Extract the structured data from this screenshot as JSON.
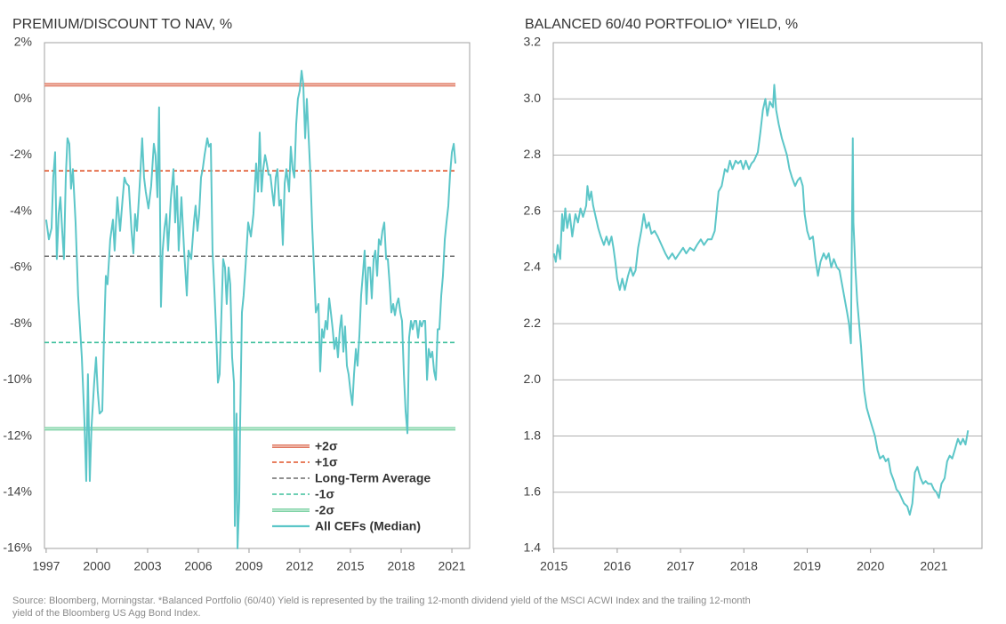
{
  "chart_data": [
    {
      "type": "line",
      "title": "PREMIUM/DISCOUNT TO NAV, %",
      "xlim": [
        1996.9,
        2022.05
      ],
      "xticks": [
        1997,
        2000,
        2003,
        2006,
        2009,
        2012,
        2015,
        2018,
        2021
      ],
      "ylim": [
        -16,
        2
      ],
      "yticks": [
        {
          "value": 2,
          "label": "2%"
        },
        {
          "value": 0,
          "label": "0%"
        },
        {
          "value": -2,
          "label": "-2%"
        },
        {
          "value": -4,
          "label": "-4%"
        },
        {
          "value": -6,
          "label": "-6%"
        },
        {
          "value": -8,
          "label": "-8%"
        },
        {
          "value": -10,
          "label": "-10%"
        },
        {
          "value": -12,
          "label": "-12%"
        },
        {
          "value": -14,
          "label": "-14%"
        },
        {
          "value": -16,
          "label": "-16%"
        }
      ],
      "grid": false,
      "legend": "bottom-right",
      "reference_lines": [
        {
          "name": "+2σ",
          "value": 0.5,
          "color": "#e07a63",
          "style": "double"
        },
        {
          "name": "+1σ",
          "value": -2.56,
          "color": "#e0552a",
          "style": "dashed"
        },
        {
          "name": "Long-Term Average",
          "value": -5.6,
          "color": "#6b6b6b",
          "style": "dashed"
        },
        {
          "name": "-1σ",
          "value": -8.67,
          "color": "#3dbf9c",
          "style": "dashed"
        },
        {
          "name": "-2σ",
          "value": -11.74,
          "color": "#7fd3a6",
          "style": "double"
        }
      ],
      "x": [
        1997.0,
        1997.16,
        1997.32,
        1997.42,
        1997.53,
        1997.63,
        1997.74,
        1997.84,
        1997.95,
        1998.05,
        1998.16,
        1998.26,
        1998.37,
        1998.47,
        1998.58,
        1998.74,
        1998.89,
        1999.11,
        1999.26,
        1999.37,
        1999.47,
        1999.58,
        1999.68,
        1999.84,
        1999.95,
        2000.05,
        2000.16,
        2000.32,
        2000.42,
        2000.53,
        2000.63,
        2000.79,
        2000.95,
        2001.05,
        2001.21,
        2001.37,
        2001.53,
        2001.63,
        2001.74,
        2001.89,
        2002.05,
        2002.16,
        2002.26,
        2002.37,
        2002.53,
        2002.68,
        2002.79,
        2002.89,
        2003.05,
        2003.21,
        2003.37,
        2003.47,
        2003.58,
        2003.68,
        2003.79,
        2003.89,
        2004.0,
        2004.11,
        2004.21,
        2004.37,
        2004.53,
        2004.63,
        2004.74,
        2004.84,
        2005.0,
        2005.16,
        2005.32,
        2005.42,
        2005.58,
        2005.74,
        2005.84,
        2005.95,
        2006.05,
        2006.16,
        2006.26,
        2006.37,
        2006.53,
        2006.63,
        2006.74,
        2006.84,
        2006.95,
        2007.05,
        2007.16,
        2007.26,
        2007.37,
        2007.47,
        2007.58,
        2007.68,
        2007.79,
        2007.89,
        2008.0,
        2008.11,
        2008.16,
        2008.26,
        2008.32,
        2008.42,
        2008.47,
        2008.58,
        2008.68,
        2008.79,
        2008.95,
        2009.11,
        2009.26,
        2009.42,
        2009.53,
        2009.63,
        2009.74,
        2009.84,
        2009.95,
        2010.05,
        2010.16,
        2010.26,
        2010.37,
        2010.47,
        2010.58,
        2010.68,
        2010.79,
        2010.89,
        2011.0,
        2011.11,
        2011.21,
        2011.37,
        2011.47,
        2011.58,
        2011.68,
        2011.79,
        2011.89,
        2012.0,
        2012.11,
        2012.21,
        2012.32,
        2012.42,
        2012.53,
        2012.63,
        2012.74,
        2012.84,
        2012.95,
        2013.11,
        2013.21,
        2013.32,
        2013.42,
        2013.53,
        2013.63,
        2013.74,
        2013.84,
        2013.95,
        2014.05,
        2014.16,
        2014.26,
        2014.37,
        2014.47,
        2014.58,
        2014.68,
        2014.79,
        2014.89,
        2015.0,
        2015.11,
        2015.21,
        2015.32,
        2015.42,
        2015.53,
        2015.63,
        2015.74,
        2015.84,
        2015.95,
        2016.05,
        2016.16,
        2016.26,
        2016.37,
        2016.47,
        2016.58,
        2016.68,
        2016.79,
        2016.89,
        2017.0,
        2017.11,
        2017.21,
        2017.32,
        2017.42,
        2017.53,
        2017.63,
        2017.74,
        2017.84,
        2017.95,
        2018.05,
        2018.16,
        2018.26,
        2018.37,
        2018.47,
        2018.58,
        2018.68,
        2018.79,
        2018.89,
        2019.0,
        2019.11,
        2019.21,
        2019.32,
        2019.42,
        2019.53,
        2019.63,
        2019.74,
        2019.84,
        2019.95,
        2020.05,
        2020.16,
        2020.26,
        2020.37,
        2020.47,
        2020.58,
        2020.68,
        2020.79,
        2020.89,
        2021.0,
        2021.11,
        2021.21
      ],
      "series": [
        {
          "name": "All CEFs (Median)",
          "color": "#5cc6c8",
          "values": [
            -4.3,
            -5.0,
            -4.6,
            -2.8,
            -1.9,
            -5.7,
            -4.1,
            -3.5,
            -4.7,
            -5.7,
            -2.8,
            -1.4,
            -1.6,
            -3.2,
            -2.5,
            -4.4,
            -7.0,
            -9.2,
            -11.4,
            -13.6,
            -9.8,
            -13.6,
            -11.7,
            -10.1,
            -9.2,
            -10.4,
            -11.2,
            -11.1,
            -8.5,
            -6.3,
            -6.6,
            -5.0,
            -4.3,
            -5.4,
            -3.5,
            -4.7,
            -3.5,
            -2.8,
            -3.0,
            -3.1,
            -4.7,
            -5.5,
            -4.1,
            -4.7,
            -3.1,
            -1.4,
            -2.8,
            -3.3,
            -3.9,
            -3.1,
            -1.6,
            -2.0,
            -3.5,
            -0.3,
            -7.4,
            -5.4,
            -4.6,
            -4.1,
            -5.4,
            -3.6,
            -2.5,
            -4.4,
            -3.1,
            -5.4,
            -3.5,
            -5.4,
            -7.0,
            -5.4,
            -5.7,
            -4.4,
            -3.8,
            -4.7,
            -4.1,
            -2.8,
            -2.5,
            -2.0,
            -1.4,
            -1.7,
            -1.6,
            -5.4,
            -6.8,
            -8.2,
            -10.1,
            -9.8,
            -7.6,
            -5.7,
            -6.0,
            -7.3,
            -6.0,
            -6.6,
            -9.2,
            -10.1,
            -15.2,
            -11.2,
            -16.0,
            -14.3,
            -11.7,
            -7.6,
            -7.0,
            -6.0,
            -4.4,
            -4.9,
            -4.1,
            -2.3,
            -3.3,
            -1.2,
            -3.3,
            -2.5,
            -2.0,
            -2.3,
            -2.7,
            -2.7,
            -3.3,
            -3.8,
            -2.8,
            -2.5,
            -3.8,
            -3.6,
            -5.2,
            -3.0,
            -2.5,
            -3.3,
            -1.7,
            -2.5,
            -2.8,
            -0.9,
            0.0,
            0.3,
            1.0,
            0.5,
            -1.4,
            0.0,
            -1.4,
            -2.7,
            -4.6,
            -6.0,
            -7.6,
            -7.3,
            -9.7,
            -8.2,
            -8.5,
            -7.9,
            -8.2,
            -7.1,
            -7.6,
            -8.2,
            -8.9,
            -8.5,
            -9.2,
            -8.2,
            -7.7,
            -9.0,
            -8.1,
            -9.5,
            -9.8,
            -10.4,
            -10.9,
            -9.8,
            -8.9,
            -9.5,
            -8.4,
            -7.0,
            -6.2,
            -5.4,
            -7.3,
            -6.0,
            -6.0,
            -7.1,
            -5.7,
            -5.4,
            -6.3,
            -5.0,
            -5.2,
            -4.7,
            -4.4,
            -5.7,
            -5.7,
            -6.6,
            -7.6,
            -7.3,
            -7.7,
            -7.3,
            -7.1,
            -7.6,
            -7.9,
            -9.8,
            -11.1,
            -11.9,
            -8.5,
            -7.9,
            -8.2,
            -7.9,
            -7.9,
            -8.5,
            -7.9,
            -8.1,
            -7.9,
            -7.9,
            -10.0,
            -8.9,
            -9.2,
            -9.0,
            -9.7,
            -10.0,
            -8.2,
            -8.2,
            -7.0,
            -6.3,
            -5.0,
            -4.4,
            -3.8,
            -2.7,
            -1.9,
            -1.6,
            -2.3
          ]
        }
      ]
    },
    {
      "type": "line",
      "title": "BALANCED 60/40 PORTFOLIO* YIELD, %",
      "xlim": [
        2014.99,
        2021.76
      ],
      "xticks": [
        2015,
        2016,
        2017,
        2018,
        2019,
        2020,
        2021
      ],
      "ylim": [
        1.4,
        3.2
      ],
      "yticks": [
        3.2,
        {
          "value": 3,
          "label": "3.0"
        },
        2.8,
        2.6,
        2.4,
        2.2,
        {
          "value": 2,
          "label": "2.0"
        },
        1.8,
        1.6,
        1.4
      ],
      "grid": true,
      "x": [
        2015.0,
        2015.03,
        2015.06,
        2015.1,
        2015.13,
        2015.15,
        2015.18,
        2015.21,
        2015.25,
        2015.29,
        2015.34,
        2015.38,
        2015.42,
        2015.46,
        2015.51,
        2015.53,
        2015.56,
        2015.59,
        2015.62,
        2015.66,
        2015.7,
        2015.74,
        2015.79,
        2015.83,
        2015.87,
        2015.91,
        2015.94,
        2015.97,
        2016.0,
        2016.04,
        2016.08,
        2016.12,
        2016.17,
        2016.21,
        2016.25,
        2016.29,
        2016.33,
        2016.38,
        2016.42,
        2016.46,
        2016.5,
        2016.54,
        2016.59,
        2016.64,
        2016.7,
        2016.76,
        2016.81,
        2016.87,
        2016.92,
        2016.98,
        2017.04,
        2017.09,
        2017.15,
        2017.21,
        2017.26,
        2017.32,
        2017.37,
        2017.43,
        2017.49,
        2017.54,
        2017.6,
        2017.65,
        2017.7,
        2017.74,
        2017.78,
        2017.82,
        2017.87,
        2017.91,
        2017.95,
        2017.99,
        2018.03,
        2018.08,
        2018.12,
        2018.16,
        2018.22,
        2018.26,
        2018.3,
        2018.34,
        2018.37,
        2018.41,
        2018.46,
        2018.48,
        2018.51,
        2018.55,
        2018.6,
        2018.64,
        2018.68,
        2018.72,
        2018.76,
        2018.81,
        2018.85,
        2018.89,
        2018.93,
        2018.96,
        2019.0,
        2019.04,
        2019.09,
        2019.13,
        2019.17,
        2019.21,
        2019.26,
        2019.3,
        2019.34,
        2019.38,
        2019.42,
        2019.47,
        2019.51,
        2019.55,
        2019.59,
        2019.63,
        2019.66,
        2019.69,
        2019.72,
        2019.73,
        2019.76,
        2019.79,
        2019.82,
        2019.85,
        2019.87,
        2019.9,
        2019.94,
        2019.99,
        2020.03,
        2020.07,
        2020.11,
        2020.15,
        2020.2,
        2020.24,
        2020.28,
        2020.32,
        2020.37,
        2020.41,
        2020.45,
        2020.49,
        2020.53,
        2020.58,
        2020.62,
        2020.66,
        2020.7,
        2020.74,
        2020.79,
        2020.83,
        2020.87,
        2020.91,
        2020.96,
        2021.0,
        2021.04,
        2021.08,
        2021.12,
        2021.17,
        2021.21,
        2021.25,
        2021.29,
        2021.33,
        2021.38,
        2021.42,
        2021.46,
        2021.5,
        2021.54
      ],
      "series": [
        {
          "name": null,
          "color": "#5cc6c8",
          "values": [
            2.45,
            2.42,
            2.48,
            2.43,
            2.59,
            2.53,
            2.61,
            2.54,
            2.59,
            2.51,
            2.59,
            2.56,
            2.61,
            2.58,
            2.62,
            2.69,
            2.64,
            2.67,
            2.62,
            2.58,
            2.54,
            2.51,
            2.48,
            2.51,
            2.48,
            2.51,
            2.47,
            2.42,
            2.36,
            2.32,
            2.36,
            2.32,
            2.37,
            2.4,
            2.37,
            2.39,
            2.47,
            2.53,
            2.59,
            2.54,
            2.56,
            2.52,
            2.53,
            2.51,
            2.48,
            2.45,
            2.43,
            2.45,
            2.43,
            2.45,
            2.47,
            2.45,
            2.47,
            2.46,
            2.48,
            2.5,
            2.48,
            2.5,
            2.5,
            2.53,
            2.67,
            2.69,
            2.75,
            2.74,
            2.78,
            2.75,
            2.78,
            2.77,
            2.78,
            2.75,
            2.78,
            2.75,
            2.77,
            2.78,
            2.81,
            2.88,
            2.96,
            3.0,
            2.94,
            2.99,
            2.97,
            3.05,
            2.96,
            2.91,
            2.86,
            2.83,
            2.8,
            2.75,
            2.72,
            2.69,
            2.71,
            2.72,
            2.69,
            2.59,
            2.53,
            2.5,
            2.51,
            2.43,
            2.37,
            2.42,
            2.45,
            2.43,
            2.45,
            2.4,
            2.43,
            2.4,
            2.39,
            2.34,
            2.29,
            2.24,
            2.2,
            2.13,
            2.86,
            2.56,
            2.4,
            2.28,
            2.2,
            2.12,
            2.05,
            1.96,
            1.9,
            1.86,
            1.83,
            1.8,
            1.75,
            1.72,
            1.73,
            1.71,
            1.72,
            1.67,
            1.64,
            1.61,
            1.6,
            1.58,
            1.56,
            1.55,
            1.52,
            1.56,
            1.67,
            1.69,
            1.65,
            1.63,
            1.64,
            1.63,
            1.63,
            1.61,
            1.6,
            1.58,
            1.63,
            1.65,
            1.71,
            1.73,
            1.72,
            1.75,
            1.79,
            1.77,
            1.79,
            1.77,
            1.82
          ]
        }
      ]
    }
  ],
  "footnote": [
    "Source: Bloomberg, Morningstar. *Balanced Portfolio (60/40) Yield is represented by the trailing 12-month dividend yield of the MSCI ACWI Index and the trailing 12-month",
    "yield of the Bloomberg US Agg Bond Index."
  ]
}
